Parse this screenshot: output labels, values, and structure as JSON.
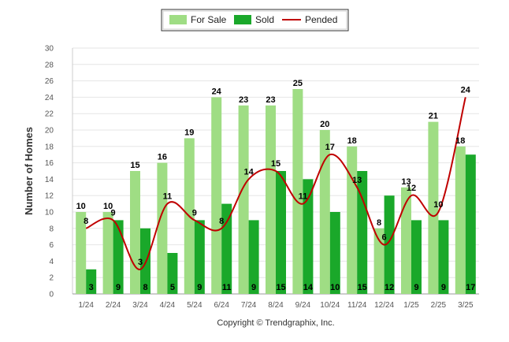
{
  "chart_data": {
    "type": "bar",
    "ylabel": "Number of Homes",
    "ylim": [
      0,
      30
    ],
    "ytick_step": 2,
    "grid": true,
    "legend_position": "top-center",
    "categories": [
      "1/24",
      "2/24",
      "3/24",
      "4/24",
      "5/24",
      "6/24",
      "7/24",
      "8/24",
      "9/24",
      "10/24",
      "11/24",
      "12/24",
      "1/25",
      "2/25",
      "3/25"
    ],
    "series": [
      {
        "name": "For Sale",
        "kind": "bar",
        "color": "#9fdd84",
        "values": [
          10,
          10,
          15,
          16,
          19,
          24,
          23,
          23,
          25,
          20,
          18,
          8,
          13,
          21,
          18
        ]
      },
      {
        "name": "Sold",
        "kind": "bar",
        "color": "#1aa82a",
        "values": [
          3,
          9,
          8,
          5,
          9,
          11,
          9,
          15,
          14,
          10,
          15,
          12,
          9,
          9,
          17
        ]
      },
      {
        "name": "Pended",
        "kind": "line",
        "color": "#c00000",
        "values": [
          8,
          9,
          3,
          11,
          9,
          8,
          14,
          15,
          11,
          17,
          13,
          6,
          12,
          10,
          24
        ]
      }
    ]
  },
  "footer": {
    "copyright": "Copyright © Trendgraphix, Inc."
  }
}
